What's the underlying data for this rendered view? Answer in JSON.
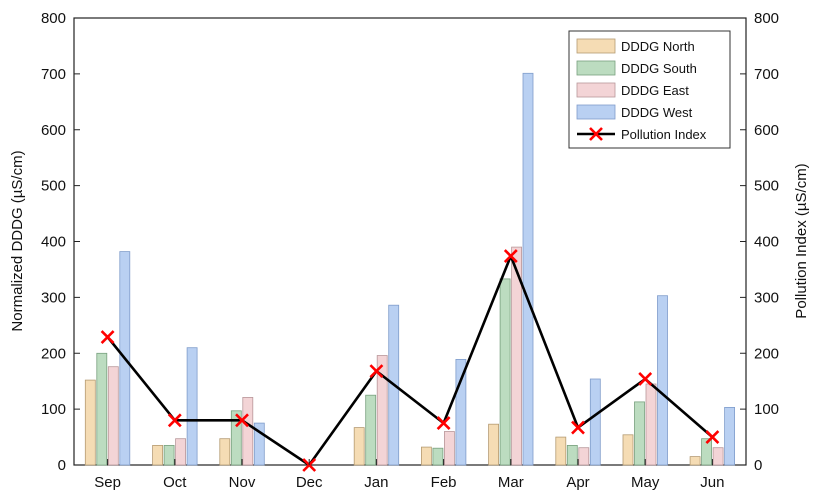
{
  "chart_data": {
    "type": "bar",
    "categories": [
      "Sep",
      "Oct",
      "Nov",
      "Dec",
      "Jan",
      "Feb",
      "Mar",
      "Apr",
      "May",
      "Jun"
    ],
    "series": [
      {
        "name": "DDDG North",
        "color": "#f5dcb4",
        "edge": "#b59b72",
        "values": [
          152,
          35,
          47,
          0,
          67,
          32,
          73,
          50,
          54,
          15
        ]
      },
      {
        "name": "DDDG South",
        "color": "#bcdcc0",
        "edge": "#78a07e",
        "values": [
          200,
          35,
          97,
          0,
          125,
          30,
          333,
          35,
          113,
          47
        ]
      },
      {
        "name": "DDDG East",
        "color": "#f3d4d6",
        "edge": "#b8979a",
        "values": [
          176,
          47,
          121,
          0,
          196,
          60,
          390,
          31,
          145,
          31
        ]
      },
      {
        "name": "DDDG West",
        "color": "#b9d0f2",
        "edge": "#7f9ccb",
        "values": [
          382,
          210,
          75,
          0,
          286,
          189,
          701,
          154,
          303,
          103
        ]
      }
    ],
    "line_series": {
      "name": "Pollution Index",
      "color": "#000000",
      "marker_color": "#ff0000",
      "values": [
        229,
        80,
        80,
        0,
        168,
        75,
        374,
        67,
        154,
        50
      ]
    },
    "ylabel": "Normalized DDDG (µS/cm)",
    "y2label": "Pollution Index (µS/cm)",
    "ylim": [
      0,
      800
    ],
    "y2lim": [
      0,
      800
    ],
    "yticks": [
      "0",
      "100",
      "200",
      "300",
      "400",
      "500",
      "600",
      "700",
      "800"
    ],
    "y2ticks": [
      "0",
      "100",
      "200",
      "300",
      "400",
      "500",
      "600",
      "700",
      "800"
    ],
    "grid": false,
    "legend_position": "top-right"
  }
}
